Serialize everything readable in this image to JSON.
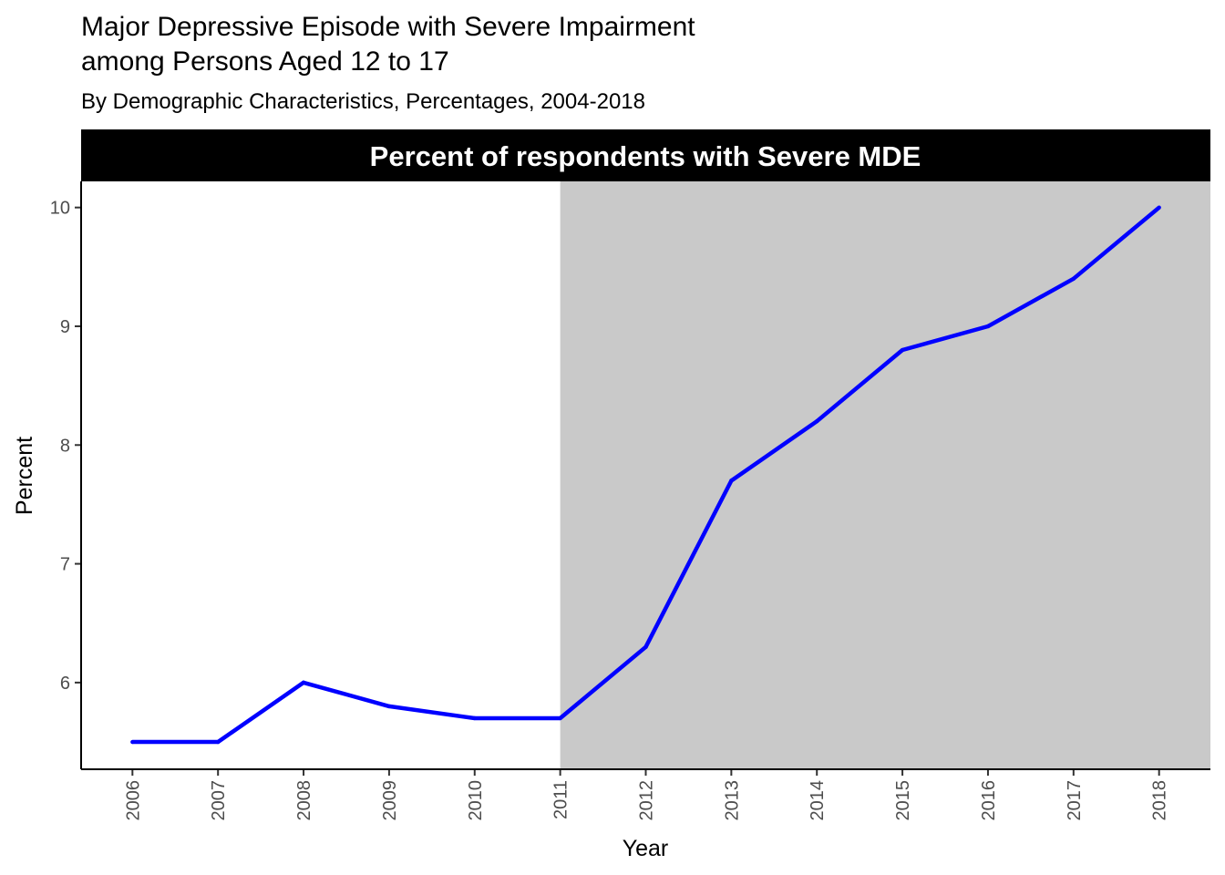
{
  "chart_data": {
    "type": "line",
    "title_lines": [
      "Major Depressive Episode with Severe Impairment",
      "among Persons Aged 12 to 17"
    ],
    "subtitle": "By Demographic Characteristics, Percentages, 2004-2018",
    "panel_label": "Percent of respondents with Severe MDE",
    "xlabel": "Year",
    "ylabel": "Percent",
    "x": [
      2006,
      2007,
      2008,
      2009,
      2010,
      2011,
      2012,
      2013,
      2014,
      2015,
      2016,
      2017,
      2018
    ],
    "x_tick_labels": [
      "2006",
      "2007",
      "2008",
      "2009",
      "2010",
      "2011",
      "2012",
      "2013",
      "2014",
      "2015",
      "2016",
      "2017",
      "2018"
    ],
    "series": [
      {
        "values": [
          5.5,
          5.5,
          6.0,
          5.8,
          5.7,
          5.7,
          6.3,
          7.7,
          8.2,
          8.8,
          9.0,
          9.4,
          10.0
        ],
        "color": "#0000ff"
      }
    ],
    "y_ticks": [
      6,
      7,
      8,
      9,
      10
    ],
    "y_tick_labels": [
      "6",
      "7",
      "8",
      "9",
      "10"
    ],
    "xlim": [
      2005.4,
      2018.6
    ],
    "ylim": [
      5.27,
      10.22
    ],
    "shaded_region": {
      "x_start": 2011,
      "x_end": 2018.6,
      "color": "#c9c9c9"
    },
    "grid": false,
    "legend": "none",
    "colors": {
      "line": "#0000ff",
      "shade": "#c9c9c9",
      "strip_background": "#000000",
      "strip_text": "#ffffff",
      "tick_text": "#4d4d4d",
      "axis": "#000000"
    }
  }
}
